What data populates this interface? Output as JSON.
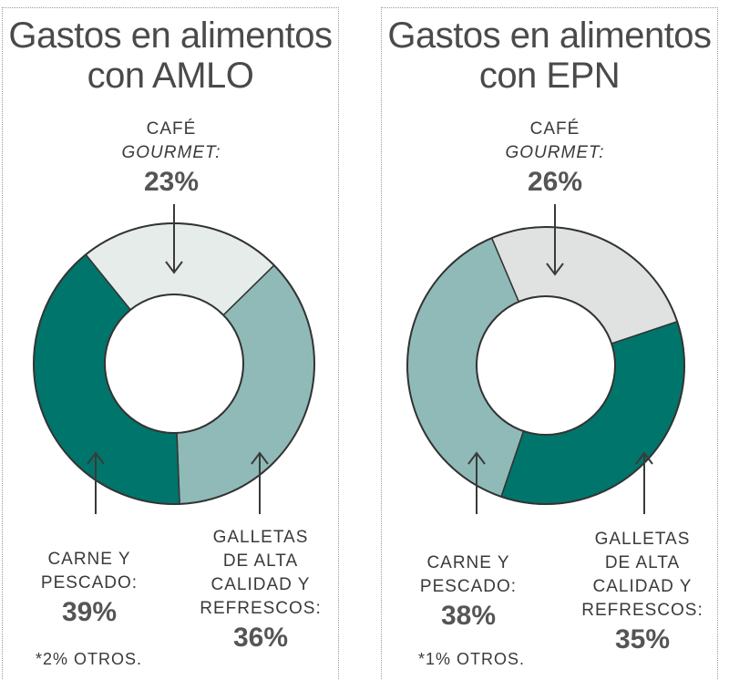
{
  "colors": {
    "dark": "#00756b",
    "medium": "#8fbab7",
    "light_amlo": "#e5ecea",
    "light_epn": "#e0e2e1",
    "stroke": "#333333",
    "arrow": "#3a3a3a"
  },
  "chart_data": [
    {
      "type": "donut",
      "title_line1": "Gastos en alimentos",
      "title_line2": "con AMLO",
      "slices": [
        {
          "label_lines": [
            "CAFÉ",
            "GOURMET:"
          ],
          "value": 23,
          "pct_text": "23%",
          "color_key": "light_amlo"
        },
        {
          "label_lines": [
            "GALLETAS",
            "DE ALTA",
            "CALIDAD Y",
            "REFRESCOS:"
          ],
          "value": 36,
          "pct_text": "36%",
          "color_key": "medium"
        },
        {
          "label_lines": [
            "CARNE Y",
            "PESCADO:"
          ],
          "value": 39,
          "pct_text": "39%",
          "color_key": "dark"
        }
      ],
      "note": "*2% OTROS."
    },
    {
      "type": "donut",
      "title_line1": "Gastos en alimentos",
      "title_line2": "con EPN",
      "slices": [
        {
          "label_lines": [
            "CAFÉ",
            "GOURMET:"
          ],
          "value": 26,
          "pct_text": "26%",
          "color_key": "light_epn"
        },
        {
          "label_lines": [
            "GALLETAS",
            "DE ALTA",
            "CALIDAD Y",
            "REFRESCOS:"
          ],
          "value": 35,
          "pct_text": "35%",
          "color_key": "dark"
        },
        {
          "label_lines": [
            "CARNE Y",
            "PESCADO:"
          ],
          "value": 38,
          "pct_text": "38%",
          "color_key": "medium"
        }
      ],
      "note": "*1% OTROS."
    }
  ]
}
